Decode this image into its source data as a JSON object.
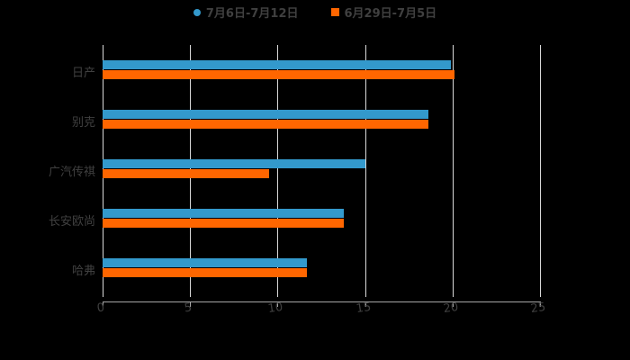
{
  "chart_data": {
    "type": "bar",
    "orientation": "horizontal",
    "title": "",
    "categories": [
      "日产",
      "别克",
      "广汽传祺",
      "长安欧尚",
      "哈弗"
    ],
    "series": [
      {
        "name": "7月6日-7月12日",
        "color": "#3399cc",
        "values": [
          19.9,
          18.6,
          15.0,
          13.8,
          11.7
        ]
      },
      {
        "name": "6月29日-7月5日",
        "color": "#ff6600",
        "values": [
          20.1,
          18.6,
          9.5,
          13.8,
          11.7
        ]
      }
    ],
    "xlabel": "",
    "ylabel": "",
    "xlim": [
      0,
      25
    ],
    "xticks": [
      "0",
      "5",
      "10",
      "15",
      "20",
      "25"
    ],
    "grid": true,
    "legend_position": "top"
  },
  "legend": {
    "series1": "7月6日-7月12日",
    "series2": "6月29日-7月5日"
  }
}
